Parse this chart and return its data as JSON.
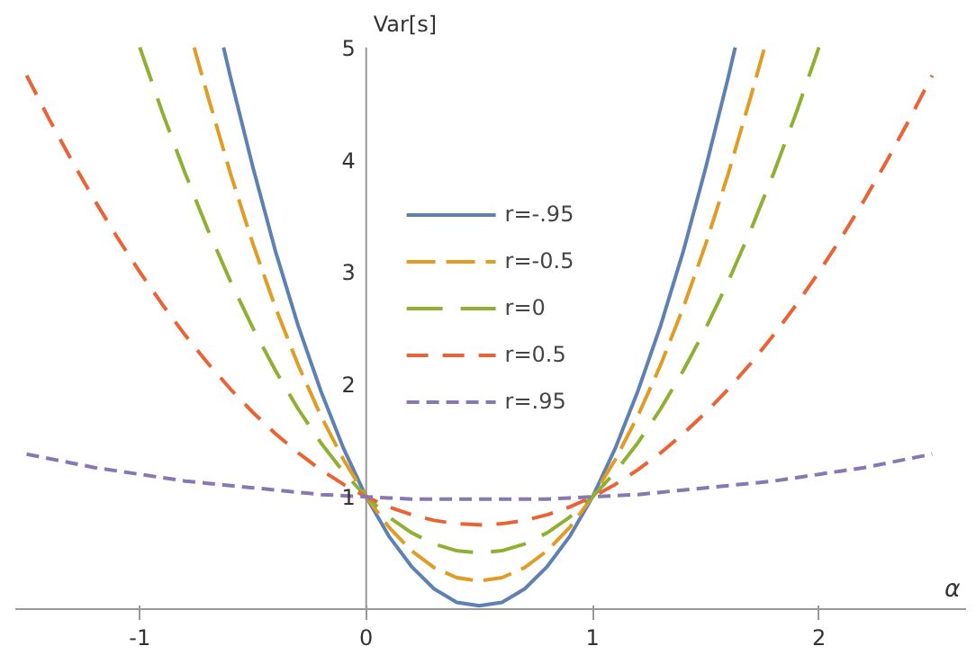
{
  "chart_data": {
    "type": "line",
    "xlabel": "α",
    "ylabel": "Var[s]",
    "xlim": [
      -1.55,
      2.65
    ],
    "ylim": [
      0,
      5
    ],
    "xticks": [
      -1,
      0,
      1,
      2
    ],
    "yticks": [
      1,
      2,
      3,
      4,
      5
    ],
    "grid": false,
    "legend": "center",
    "series": [
      {
        "name": "r=-.95",
        "color": "#5e81b5",
        "line_style": "solid",
        "x": [
          -0.63,
          -0.6,
          -0.5,
          -0.4,
          -0.3,
          -0.2,
          -0.1,
          0,
          0.1,
          0.2,
          0.3,
          0.4,
          0.5,
          0.6,
          0.7,
          0.8,
          0.9,
          1.0,
          1.1,
          1.2,
          1.3,
          1.4,
          1.5,
          1.6,
          1.63
        ],
        "values": [
          5,
          4.74,
          3.93,
          3.18,
          2.52,
          1.94,
          1.43,
          1,
          0.65,
          0.38,
          0.18,
          0.06,
          0.03,
          0.06,
          0.18,
          0.38,
          0.65,
          1,
          1.43,
          1.94,
          2.52,
          3.18,
          3.93,
          4.74,
          5
        ]
      },
      {
        "name": "r=-0.5",
        "color": "#e19c24",
        "line_style": "dashed",
        "x": [
          -0.76,
          -0.7,
          -0.6,
          -0.5,
          -0.4,
          -0.3,
          -0.2,
          -0.1,
          0,
          0.1,
          0.2,
          0.3,
          0.4,
          0.5,
          0.6,
          0.7,
          0.8,
          0.9,
          1.0,
          1.1,
          1.2,
          1.3,
          1.4,
          1.5,
          1.6,
          1.7,
          1.76
        ],
        "values": [
          5,
          4.57,
          3.88,
          3.25,
          2.68,
          2.17,
          1.72,
          1.33,
          1,
          0.73,
          0.52,
          0.37,
          0.28,
          0.25,
          0.28,
          0.37,
          0.52,
          0.73,
          1,
          1.33,
          1.72,
          2.17,
          2.68,
          3.25,
          3.88,
          4.57,
          5
        ]
      },
      {
        "name": "r=0",
        "color": "#8fb032",
        "line_style": "dashed",
        "x": [
          -1.0,
          -0.9,
          -0.8,
          -0.7,
          -0.6,
          -0.5,
          -0.4,
          -0.3,
          -0.2,
          -0.1,
          0,
          0.1,
          0.2,
          0.3,
          0.4,
          0.5,
          0.6,
          0.7,
          0.8,
          0.9,
          1.0,
          1.1,
          1.2,
          1.3,
          1.4,
          1.5,
          1.6,
          1.7,
          1.8,
          1.9,
          2.0
        ],
        "values": [
          5,
          4.42,
          3.88,
          3.38,
          2.92,
          2.5,
          2.12,
          1.78,
          1.48,
          1.22,
          1,
          0.82,
          0.68,
          0.58,
          0.52,
          0.5,
          0.52,
          0.58,
          0.68,
          0.82,
          1,
          1.22,
          1.48,
          1.78,
          2.12,
          2.5,
          2.92,
          3.38,
          3.88,
          4.42,
          5
        ]
      },
      {
        "name": "r=0.5",
        "color": "#eb6235",
        "line_style": "dashed",
        "x": [
          -1.5,
          -1.4,
          -1.3,
          -1.2,
          -1.1,
          -1.0,
          -0.9,
          -0.8,
          -0.7,
          -0.6,
          -0.5,
          -0.4,
          -0.3,
          -0.2,
          -0.1,
          0,
          0.1,
          0.2,
          0.3,
          0.4,
          0.5,
          0.6,
          0.7,
          0.8,
          0.9,
          1.0,
          1.1,
          1.2,
          1.3,
          1.4,
          1.5,
          1.6,
          1.7,
          1.8,
          1.9,
          2.0,
          2.1,
          2.2,
          2.3,
          2.4,
          2.5
        ],
        "values": [
          4.75,
          4.36,
          3.99,
          3.64,
          3.31,
          3.0,
          2.71,
          2.44,
          2.19,
          1.96,
          1.75,
          1.56,
          1.39,
          1.24,
          1.11,
          1,
          0.91,
          0.84,
          0.79,
          0.76,
          0.75,
          0.76,
          0.79,
          0.84,
          0.91,
          1,
          1.11,
          1.24,
          1.39,
          1.56,
          1.75,
          1.96,
          2.19,
          2.44,
          2.71,
          3.0,
          3.31,
          3.64,
          3.99,
          4.36,
          4.75
        ]
      },
      {
        "name": "r=.95",
        "color": "#8778b3",
        "line_style": "dashed",
        "x": [
          -1.5,
          -1.4,
          -1.3,
          -1.2,
          -1.1,
          -1.0,
          -0.9,
          -0.8,
          -0.7,
          -0.6,
          -0.5,
          -0.4,
          -0.3,
          -0.2,
          -0.1,
          0,
          0.1,
          0.2,
          0.3,
          0.4,
          0.5,
          0.6,
          0.7,
          0.8,
          0.9,
          1.0,
          1.1,
          1.2,
          1.3,
          1.4,
          1.5,
          1.6,
          1.7,
          1.8,
          1.9,
          2.0,
          2.1,
          2.2,
          2.3,
          2.4,
          2.5
        ],
        "values": [
          1.38,
          1.34,
          1.3,
          1.26,
          1.23,
          1.2,
          1.17,
          1.14,
          1.12,
          1.1,
          1.08,
          1.06,
          1.04,
          1.02,
          1.01,
          1,
          0.99,
          0.98,
          0.98,
          0.98,
          0.98,
          0.98,
          0.98,
          0.98,
          0.99,
          1,
          1.01,
          1.02,
          1.04,
          1.06,
          1.08,
          1.1,
          1.12,
          1.14,
          1.17,
          1.2,
          1.23,
          1.26,
          1.3,
          1.34,
          1.38
        ]
      }
    ]
  }
}
